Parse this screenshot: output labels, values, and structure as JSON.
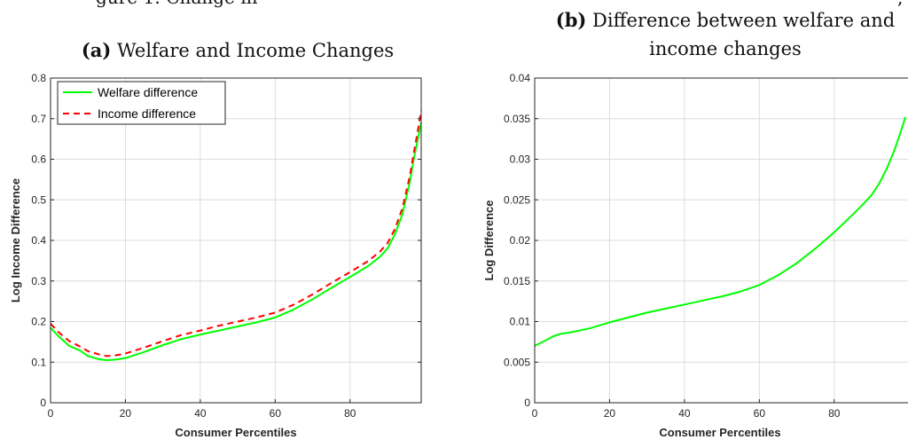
{
  "figure": {
    "top_caption_fragment": "gure 1: Change in",
    "top_caption_right_fragment": ","
  },
  "chart_data": [
    {
      "type": "line",
      "panel_label": "(a)",
      "title": "Welfare and Income Changes",
      "xlabel": "Consumer Percentiles",
      "ylabel": "Log Income Difference",
      "xlim": [
        0,
        99
      ],
      "ylim": [
        0,
        0.8
      ],
      "xticks": [
        0,
        20,
        40,
        60,
        80
      ],
      "yticks": [
        0,
        0.1,
        0.2,
        0.3,
        0.4,
        0.5,
        0.6,
        0.7,
        0.8
      ],
      "ytick_labels": [
        "0",
        "0.1",
        "0.2",
        "0.3",
        "0.4",
        "0.5",
        "0.6",
        "0.7",
        "0.8"
      ],
      "grid": true,
      "legend": "top-left",
      "series": [
        {
          "name": "Welfare difference",
          "color": "#00ff00",
          "style": "solid",
          "x": [
            0,
            2,
            5,
            8,
            10,
            13,
            15,
            17,
            20,
            25,
            30,
            35,
            40,
            45,
            50,
            55,
            60,
            65,
            70,
            75,
            80,
            85,
            88,
            90,
            92,
            94,
            96,
            97,
            98,
            99
          ],
          "y": [
            0.185,
            0.165,
            0.14,
            0.128,
            0.115,
            0.107,
            0.105,
            0.106,
            0.11,
            0.125,
            0.142,
            0.157,
            0.168,
            0.178,
            0.188,
            0.198,
            0.21,
            0.23,
            0.255,
            0.283,
            0.31,
            0.338,
            0.36,
            0.38,
            0.415,
            0.465,
            0.545,
            0.6,
            0.645,
            0.69
          ]
        },
        {
          "name": "Income difference",
          "color": "#ff0000",
          "style": "dashed",
          "x": [
            0,
            2,
            5,
            8,
            10,
            13,
            15,
            17,
            20,
            25,
            30,
            35,
            40,
            45,
            50,
            55,
            60,
            65,
            70,
            75,
            80,
            85,
            88,
            90,
            92,
            94,
            96,
            97,
            98,
            99
          ],
          "y": [
            0.195,
            0.175,
            0.152,
            0.138,
            0.127,
            0.119,
            0.115,
            0.116,
            0.121,
            0.136,
            0.152,
            0.167,
            0.178,
            0.19,
            0.2,
            0.21,
            0.222,
            0.242,
            0.267,
            0.295,
            0.322,
            0.35,
            0.373,
            0.393,
            0.428,
            0.48,
            0.56,
            0.615,
            0.665,
            0.72
          ]
        }
      ]
    },
    {
      "type": "line",
      "panel_label": "(b)",
      "title_line1": "Difference between welfare and",
      "title_line2": "income changes",
      "xlabel": "Consumer Percentiles",
      "ylabel": "Log Difference",
      "xlim": [
        0,
        99
      ],
      "ylim": [
        0,
        0.04
      ],
      "xticks": [
        0,
        20,
        40,
        60,
        80
      ],
      "yticks": [
        0,
        0.005,
        0.01,
        0.015,
        0.02,
        0.025,
        0.03,
        0.035,
        0.04
      ],
      "ytick_labels": [
        "0",
        "0.005",
        "0.01",
        "0.015",
        "0.02",
        "0.025",
        "0.03",
        "0.035",
        "0.04"
      ],
      "grid": true,
      "series": [
        {
          "color": "#00ff00",
          "style": "solid",
          "x": [
            0,
            3,
            5,
            7,
            10,
            15,
            20,
            25,
            30,
            35,
            40,
            45,
            50,
            55,
            60,
            65,
            70,
            75,
            80,
            85,
            88,
            90,
            92,
            94,
            96,
            98,
            99
          ],
          "y": [
            0.007,
            0.0077,
            0.0082,
            0.0085,
            0.0087,
            0.0092,
            0.0099,
            0.0105,
            0.0111,
            0.0116,
            0.0121,
            0.0126,
            0.0131,
            0.0137,
            0.0145,
            0.0157,
            0.0172,
            0.019,
            0.021,
            0.0232,
            0.0246,
            0.0256,
            0.027,
            0.0288,
            0.031,
            0.0337,
            0.0352
          ]
        }
      ]
    }
  ]
}
